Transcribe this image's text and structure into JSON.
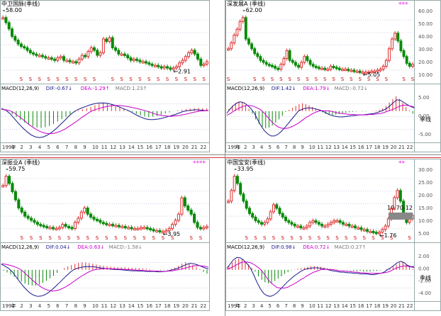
{
  "colors": {
    "up": "#e03030",
    "down": "#0a8a0a",
    "dif": "#1a1a8c",
    "dea": "#c800c8",
    "grid": "#cfcfe6",
    "marker": "#c80000"
  },
  "quadrant_label": "季线",
  "panels": [
    {
      "id": "tl",
      "title": "中卫国脉(季线)",
      "max_label": "58.00",
      "min_label": "2.91",
      "stars": "",
      "price_axis": [],
      "macd": {
        "label": "MACD(12,26,9)",
        "dif": "DIF:-0.67",
        "dea": "DEA:-1.29",
        "macd": "MACD:1.23",
        "dif_arrow": "↓",
        "dea_arrow": "↑",
        "macd_arrow": "↑"
      },
      "macd_axis": [],
      "date_axis": [
        "1993",
        "年",
        "2",
        "3",
        "4",
        "5",
        "6",
        "7",
        "8",
        "9",
        "10",
        "11",
        "12",
        "13",
        "14",
        "15",
        "16",
        "17",
        "18",
        "19",
        "20",
        "21",
        "22"
      ],
      "candles": [
        48,
        44,
        39,
        33,
        30,
        27,
        25,
        24,
        22,
        20,
        19,
        18,
        18,
        17,
        16,
        16,
        15,
        14,
        16,
        17,
        14,
        14,
        13,
        13,
        12,
        15,
        18,
        17,
        21,
        24,
        22,
        18,
        20,
        31,
        29,
        32,
        24,
        22,
        19,
        19,
        18,
        16,
        14,
        15,
        14,
        13,
        13,
        12,
        11,
        10,
        10,
        9,
        8,
        9,
        8,
        7,
        8,
        9,
        12,
        14,
        17,
        20,
        22,
        19,
        15,
        10,
        11,
        13
      ],
      "macd_hist": [
        0.2,
        -0.3,
        -0.8,
        -1.5,
        -2.2,
        -2.8,
        -3.4,
        -3.8,
        -4.1,
        -4.2,
        -4,
        -3.7,
        -3.2,
        -2.6,
        -2.0,
        -1.4,
        -0.8,
        -0.3,
        0.3,
        0.8,
        1.3,
        1.9,
        2.6,
        3.2,
        3.7,
        3.4,
        3.0,
        2.4,
        1.8,
        1.1,
        0.4,
        -0.2,
        -0.7,
        -1.1,
        -1.3,
        -1.5,
        -1.4,
        -1.2,
        -0.9,
        -0.6,
        -0.3,
        0,
        0.3,
        0.6,
        0.9,
        1.1,
        1.3,
        1.4,
        1.3,
        1.2
      ],
      "dif_line": [
        1.2,
        0.4,
        -0.6,
        -1.8,
        -3,
        -4.1,
        -5.1,
        -5.9,
        -6.4,
        -6.6,
        -6.4,
        -5.9,
        -5.2,
        -4.3,
        -3.3,
        -2.3,
        -1.2,
        -0.3,
        0.6,
        1.4,
        2.1,
        2.8,
        3.3,
        3.6,
        3.7,
        3.5,
        3.1,
        2.5,
        1.8,
        1.0,
        0.3,
        -0.4,
        -1,
        -1.5,
        -1.9,
        -2.1,
        -2.1,
        -2,
        -1.8,
        -1.5,
        -1.2,
        -0.9,
        -0.5,
        -0.1,
        0.2,
        0.4,
        0.6,
        0.5,
        0.3,
        0.2
      ],
      "dea_line": [
        0.8,
        0.6,
        0.2,
        -0.4,
        -1.2,
        -2,
        -2.9,
        -3.7,
        -4.4,
        -5,
        -5.4,
        -5.6,
        -5.6,
        -5.4,
        -5,
        -4.5,
        -3.8,
        -3.1,
        -2.4,
        -1.6,
        -0.9,
        -0.2,
        0.5,
        1.1,
        1.7,
        2.1,
        2.4,
        2.5,
        2.5,
        2.3,
        2,
        1.6,
        1.2,
        0.7,
        0.2,
        -0.2,
        -0.6,
        -0.9,
        -1.1,
        -1.2,
        -1.3,
        -1.2,
        -1.1,
        -0.9,
        -0.7,
        -0.4,
        -0.2,
        0,
        0.1,
        0.3
      ]
    },
    {
      "id": "tr",
      "title": "深发展A (季线)",
      "max_label": "62.00",
      "min_label": "5.05",
      "stars": "***",
      "price_axis": [
        "60.00",
        "50.00",
        "40.00",
        "30.00",
        "20.00",
        "10.00"
      ],
      "macd": {
        "label": "MACD(12,26,9)",
        "dif": "DIF:1.42",
        "dea": "DEA:1.79",
        "macd": "MACD:-0.72",
        "dif_arrow": "↓",
        "dea_arrow": "↓",
        "macd_arrow": "↓"
      },
      "macd_axis": [
        "5.00",
        "0.00",
        "-5.00"
      ],
      "date_axis": [
        "1991",
        "年",
        "2",
        "3",
        "4",
        "5",
        "6",
        "7",
        "8",
        "9",
        "10",
        "11",
        "12",
        "13",
        "14",
        "15",
        "16",
        "17",
        "18",
        "19",
        "20",
        "21",
        "22"
      ],
      "candles": [
        30,
        36,
        44,
        50,
        58,
        62,
        40,
        35,
        30,
        25,
        22,
        18,
        16,
        14,
        13,
        12,
        10,
        9,
        14,
        20,
        28,
        18,
        16,
        13,
        11,
        16,
        22,
        18,
        14,
        12,
        11,
        10,
        10,
        9,
        9,
        12,
        11,
        10,
        9,
        9,
        9,
        8,
        8,
        7,
        7,
        6,
        6,
        6,
        6,
        7,
        7,
        8,
        9,
        12,
        18,
        30,
        40,
        46,
        38,
        28,
        22,
        15,
        12,
        14
      ],
      "macd_hist": [
        1,
        2.4,
        3.6,
        4.2,
        3.8,
        2.6,
        1,
        -0.6,
        -2,
        -3.1,
        -3.8,
        -4.1,
        -4,
        -3.5,
        -2.8,
        -2,
        -1.1,
        -0.2,
        0.6,
        1.4,
        2.2,
        3,
        3.4,
        3.1,
        2.5,
        1.8,
        1,
        0.3,
        -0.3,
        -0.7,
        -0.9,
        -1.0,
        -0.9,
        -0.7,
        -0.5,
        -0.4,
        -0.3,
        -0.2,
        -0.1,
        0,
        -0.1,
        -0.1,
        0,
        0.1,
        0.3,
        0.6,
        1.2,
        2.3,
        3.8,
        5.2,
        6.4,
        5.4,
        3.6,
        1.8,
        0.4,
        -0.6
      ],
      "dif_line": [
        -0.5,
        1,
        2.5,
        3.6,
        4,
        3.6,
        2.6,
        1.2,
        -0.4,
        -2,
        -3.5,
        -4.7,
        -5.5,
        -6,
        -6,
        -5.6,
        -4.9,
        -4,
        -3,
        -2,
        -1,
        0,
        0.7,
        1.2,
        1.4,
        1.3,
        1,
        0.6,
        0.1,
        -0.4,
        -0.8,
        -1.1,
        -1.3,
        -1.4,
        -1.4,
        -1.3,
        -1.2,
        -1.1,
        -1,
        -0.9,
        -0.9,
        -0.8,
        -0.7,
        -0.6,
        -0.4,
        -0.1,
        0.4,
        1.2,
        2.4,
        3.8,
        4.9,
        4.7,
        3.8,
        2.8,
        2,
        1.4
      ],
      "dea_line": [
        -1,
        -0.6,
        0,
        0.8,
        1.6,
        2.2,
        2.5,
        2.4,
        2,
        1.3,
        0.5,
        -0.5,
        -1.5,
        -2.4,
        -3.2,
        -3.8,
        -4.1,
        -4.2,
        -4.1,
        -3.8,
        -3.4,
        -2.9,
        -2.3,
        -1.7,
        -1.2,
        -0.7,
        -0.3,
        0,
        0.2,
        0.2,
        0.1,
        -0.1,
        -0.3,
        -0.5,
        -0.6,
        -0.7,
        -0.8,
        -0.8,
        -0.9,
        -0.9,
        -0.9,
        -0.9,
        -0.8,
        -0.8,
        -0.7,
        -0.6,
        -0.4,
        -0.1,
        0.3,
        0.9,
        1.6,
        2.3,
        2.6,
        2.5,
        2.2,
        1.8
      ]
    },
    {
      "id": "bl",
      "title": "深振业A (季线)",
      "max_label": "59.75",
      "min_label": "3.95",
      "stars": "****",
      "price_axis": [],
      "macd": {
        "label": "MACD(12,26,9)",
        "dif": "DIF:0.04",
        "dea": "DEA:0.63",
        "macd": "MACD:-1.58",
        "dif_arrow": "↓",
        "dea_arrow": "↓",
        "macd_arrow": "↓"
      },
      "macd_axis": [],
      "date_axis": [
        "1992",
        "年",
        "2",
        "3",
        "4",
        "5",
        "6",
        "7",
        "8",
        "9",
        "10",
        "11",
        "12",
        "13",
        "14",
        "15",
        "16",
        "17",
        "18",
        "19",
        "20",
        "21",
        "22"
      ],
      "candles": [
        50,
        59,
        52,
        44,
        36,
        28,
        24,
        20,
        18,
        16,
        14,
        12,
        11,
        10,
        9,
        9,
        8,
        8,
        9,
        12,
        10,
        9,
        8,
        14,
        18,
        24,
        28,
        22,
        19,
        17,
        16,
        14,
        13,
        12,
        12,
        11,
        11,
        10,
        10,
        9,
        9,
        8,
        8,
        8,
        9,
        9,
        8,
        7,
        6,
        6,
        5,
        5,
        6,
        8,
        12,
        16,
        22,
        38,
        30,
        26,
        22,
        14,
        9,
        8,
        9,
        10
      ],
      "macd_hist": [
        -0.3,
        -0.8,
        -1.4,
        -2.1,
        -2.9,
        -3.6,
        -4.2,
        -4.6,
        -4.8,
        -4.8,
        -4.5,
        -4,
        -3.4,
        -2.6,
        -1.8,
        -0.9,
        0,
        0.9,
        1.8,
        2.6,
        3.3,
        3.8,
        4.1,
        4.0,
        3.7,
        3.3,
        2.9,
        2.5,
        2.2,
        2.0,
        1.8,
        1.6,
        1.5,
        1.4,
        1.3,
        1.2,
        1.1,
        1.0,
        0.9,
        0.8,
        0.6,
        0.4,
        0.2,
        0,
        -0.2,
        -0.1,
        0.2,
        0.6,
        1.2,
        2.2,
        3.4,
        4.2,
        3.6,
        2.6,
        1.4,
        0.4,
        -0.6,
        -1.2
      ],
      "dif_line": [
        3,
        2,
        0.8,
        -0.6,
        -2.1,
        -3.6,
        -5,
        -6.2,
        -7.2,
        -7.8,
        -8.1,
        -8,
        -7.6,
        -6.9,
        -6,
        -5,
        -3.9,
        -2.8,
        -1.7,
        -0.7,
        0.2,
        0.9,
        1.4,
        1.7,
        1.8,
        1.7,
        1.5,
        1.2,
        0.9,
        0.6,
        0.4,
        0.2,
        0.1,
        0,
        -0.1,
        -0.2,
        -0.3,
        -0.3,
        -0.4,
        -0.4,
        -0.5,
        -0.5,
        -0.5,
        -0.6,
        -0.6,
        -0.5,
        -0.3,
        0,
        0.5,
        1.2,
        2.1,
        3,
        3.5,
        3.3,
        2.7,
        1.9,
        1.1,
        0.4
      ],
      "dea_line": [
        3.3,
        3.1,
        2.7,
        2.1,
        1.4,
        0.5,
        -0.5,
        -1.6,
        -2.6,
        -3.6,
        -4.5,
        -5.3,
        -5.9,
        -6.3,
        -6.5,
        -6.4,
        -6.1,
        -5.6,
        -5,
        -4.3,
        -3.5,
        -2.7,
        -2,
        -1.3,
        -0.7,
        -0.2,
        0.2,
        0.4,
        0.6,
        0.6,
        0.6,
        0.5,
        0.4,
        0.3,
        0.2,
        0.1,
        0,
        -0.1,
        -0.1,
        -0.2,
        -0.3,
        -0.3,
        -0.4,
        -0.4,
        -0.5,
        -0.5,
        -0.4,
        -0.3,
        -0.1,
        0.2,
        0.6,
        1.2,
        1.7,
        2.1,
        2.3,
        2.2,
        1.9,
        1.4
      ]
    },
    {
      "id": "br",
      "title": "中国宝安(季线)",
      "max_label": "33.95",
      "min_label": "1.76",
      "stars": "**",
      "annotation": "10.70-12",
      "price_axis": [
        "30.00",
        "25.00",
        "20.00",
        "15.00",
        "10.00",
        "5.00"
      ],
      "macd": {
        "label": "MACD(12,26,9)",
        "dif": "DIF:0.98",
        "dea": "DEA:0.72",
        "macd": "MACD:0.27",
        "dif_arrow": "↓",
        "dea_arrow": "↓",
        "macd_arrow": "↑"
      },
      "macd_axis": [
        "2.00",
        "0.00",
        "-2.00",
        "-4.00"
      ],
      "date_axis": [
        "1991",
        "年",
        "2",
        "3",
        "4",
        "5",
        "6",
        "7",
        "8",
        "9",
        "10",
        "11",
        "12",
        "13",
        "14",
        "15",
        "16",
        "17",
        "18",
        "19",
        "20",
        "21",
        "22"
      ],
      "candles": [
        20,
        26,
        34,
        30,
        24,
        20,
        16,
        13,
        11,
        9,
        8,
        7,
        8,
        10,
        14,
        18,
        16,
        13,
        11,
        9,
        8,
        7,
        6,
        6,
        5,
        5,
        6,
        8,
        9,
        8,
        7,
        6,
        6,
        7,
        8,
        9,
        9,
        8,
        7,
        7,
        6,
        6,
        5,
        5,
        4,
        4,
        3,
        3,
        2.5,
        2,
        2.5,
        4,
        6,
        10,
        16,
        22,
        26,
        20,
        12,
        8,
        10,
        12
      ],
      "macd_hist": [
        1.2,
        2.2,
        3.1,
        3.5,
        3.2,
        2.5,
        1.6,
        0.6,
        -0.3,
        -1.1,
        -1.7,
        -2.1,
        -2.3,
        -2.2,
        -1.9,
        -1.5,
        -1.1,
        -0.7,
        -0.4,
        -0.1,
        0.1,
        0.3,
        0.5,
        0.7,
        0.9,
        1.1,
        1.2,
        1.1,
        0.9,
        0.7,
        0.5,
        0.3,
        0.2,
        0.1,
        0,
        0,
        -0.1,
        -0.1,
        -0.2,
        -0.2,
        -0.2,
        -0.3,
        -0.3,
        -0.3,
        -0.2,
        -0.2,
        -0.1,
        0,
        0.2,
        0.5,
        1.0,
        1.6,
        2.2,
        2.5,
        1.6,
        0.8,
        0.3
      ],
      "dif_line": [
        0.5,
        1.8,
        3.1,
        3.8,
        3.7,
        3,
        1.9,
        0.6,
        -0.8,
        -2.1,
        -3.2,
        -4,
        -4.4,
        -4.5,
        -4.3,
        -3.9,
        -3.3,
        -2.7,
        -2.1,
        -1.6,
        -1.1,
        -0.7,
        -0.3,
        0,
        0.3,
        0.5,
        0.6,
        0.6,
        0.5,
        0.3,
        0.1,
        -0.1,
        -0.2,
        -0.3,
        -0.4,
        -0.4,
        -0.5,
        -0.5,
        -0.6,
        -0.6,
        -0.7,
        -0.7,
        -0.7,
        -0.8,
        -0.8,
        -0.7,
        -0.6,
        -0.4,
        0,
        0.6,
        1.4,
        2.2,
        2.6,
        2.2,
        1.4,
        1,
        1
      ],
      "dea_line": [
        0.2,
        0.5,
        1,
        1.6,
        2.1,
        2.4,
        2.4,
        2.2,
        1.7,
        1,
        0.2,
        -0.6,
        -1.4,
        -2.1,
        -2.6,
        -3,
        -3.1,
        -3.1,
        -3,
        -2.7,
        -2.4,
        -2.1,
        -1.7,
        -1.4,
        -1,
        -0.7,
        -0.4,
        -0.2,
        0,
        0.1,
        0.1,
        0.1,
        0,
        -0.1,
        -0.2,
        -0.2,
        -0.3,
        -0.3,
        -0.4,
        -0.4,
        -0.5,
        -0.5,
        -0.6,
        -0.6,
        -0.6,
        -0.6,
        -0.6,
        -0.5,
        -0.4,
        -0.2,
        0.2,
        0.6,
        1,
        1.2,
        1.1,
        0.9,
        0.7
      ]
    }
  ]
}
